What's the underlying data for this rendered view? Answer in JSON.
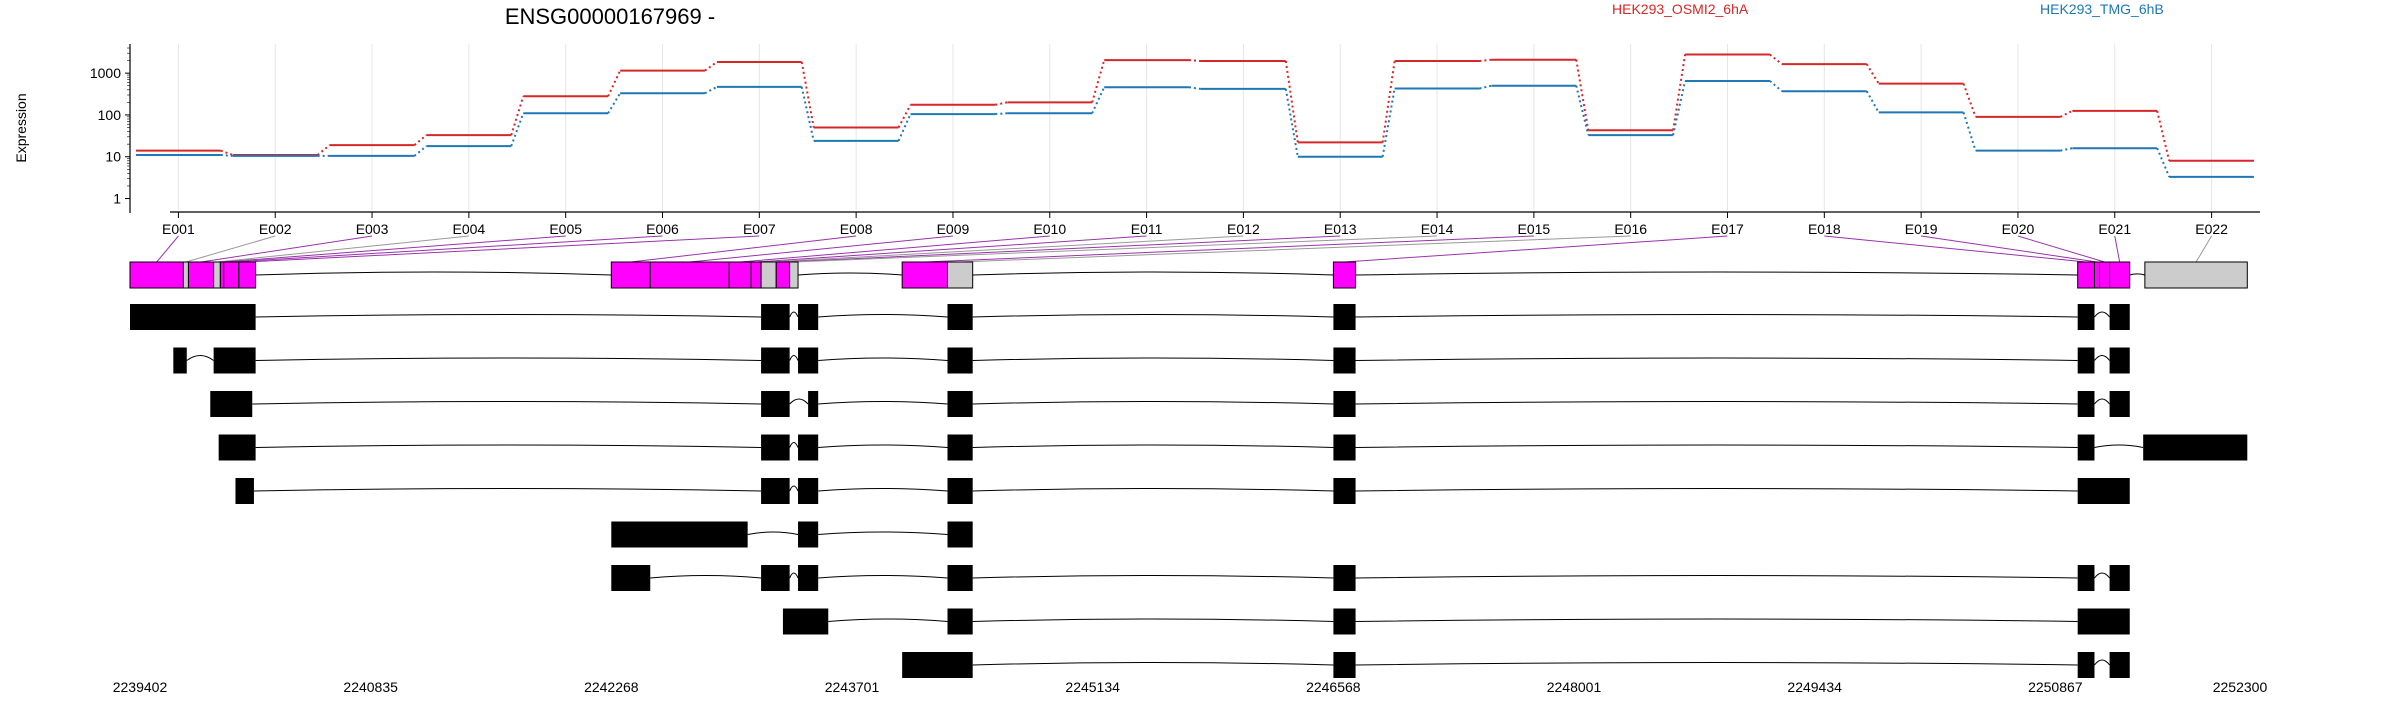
{
  "chart_data": {
    "type": "line",
    "title": "ENSG00000167969 -",
    "ylabel": "Expression",
    "yscale": "log",
    "ylim": [
      0.7,
      4000
    ],
    "y_ticks": [
      1,
      10,
      100,
      1000
    ],
    "y_tick_labels": [
      "1",
      "10",
      "100",
      "1000"
    ],
    "grid": true,
    "categories": [
      "E001",
      "E002",
      "E003",
      "E004",
      "E005",
      "E006",
      "E007",
      "E008",
      "E009",
      "E010",
      "E011",
      "E012",
      "E013",
      "E014",
      "E015",
      "E016",
      "E017",
      "E018",
      "E019",
      "E020",
      "E021",
      "E022"
    ],
    "series": [
      {
        "name": "HEK293_OSMI2_6hA",
        "color": "#d62728",
        "values": [
          14,
          11,
          19,
          33,
          280,
          1150,
          1850,
          50,
          175,
          200,
          2050,
          1950,
          22,
          1950,
          2100,
          43,
          2800,
          1650,
          560,
          90,
          125,
          8
        ]
      },
      {
        "name": "HEK293_TMG_6hB",
        "color": "#1f77b4",
        "values": [
          11,
          10.5,
          10.5,
          18,
          110,
          330,
          470,
          24,
          105,
          110,
          460,
          420,
          10,
          430,
          500,
          33,
          650,
          370,
          115,
          14,
          16,
          3.3
        ]
      }
    ],
    "gene_axis": {
      "start": 2239402,
      "end": 2252300,
      "tick_labels": [
        "2239402",
        "2240835",
        "2242268",
        "2243701",
        "2245134",
        "2246568",
        "2248001",
        "2249434",
        "2250867",
        "2252300"
      ]
    },
    "exon_bins": [
      [
        2239402,
        2239720
      ],
      [
        2239720,
        2239750
      ],
      [
        2239750,
        2239900
      ],
      [
        2239900,
        2239940
      ],
      [
        2239940,
        2239960
      ],
      [
        2239960,
        2240050
      ],
      [
        2240050,
        2240150
      ],
      [
        2242268,
        2242500
      ],
      [
        2242500,
        2242970
      ],
      [
        2242970,
        2243100
      ],
      [
        2243100,
        2243160
      ],
      [
        2243160,
        2243250
      ],
      [
        2243250,
        2243330
      ],
      [
        2243330,
        2243380
      ],
      [
        2244000,
        2244270
      ],
      [
        2244270,
        2244420
      ],
      [
        2246568,
        2246700
      ],
      [
        2251000,
        2251100
      ],
      [
        2251100,
        2251130
      ],
      [
        2251130,
        2251190
      ],
      [
        2251190,
        2251310
      ],
      [
        2251400,
        2252010
      ]
    ],
    "exon_bin_types": [
      "expressed",
      "unexpressed",
      "expressed",
      "unexpressed",
      "expressed",
      "expressed",
      "expressed",
      "expressed",
      "expressed",
      "expressed",
      "expressed",
      "unexpressed",
      "expressed",
      "unexpressed",
      "expressed",
      "unexpressed",
      "expressed",
      "expressed",
      "expressed",
      "expressed",
      "expressed",
      "unexpressed"
    ],
    "bin_colors": {
      "expressed": "#ff00ff",
      "unexpressed": "#cccccc"
    },
    "transcripts": [
      {
        "exons": [
          [
            2239402,
            2240150
          ],
          [
            2243160,
            2243330
          ],
          [
            2243380,
            2243500
          ],
          [
            2244270,
            2244420
          ],
          [
            2246568,
            2246700
          ],
          [
            2251000,
            2251100
          ],
          [
            2251190,
            2251310
          ]
        ]
      },
      {
        "exons": [
          [
            2239660,
            2239740
          ],
          [
            2239900,
            2240150
          ],
          [
            2243160,
            2243330
          ],
          [
            2243380,
            2243500
          ],
          [
            2244270,
            2244420
          ],
          [
            2246568,
            2246700
          ],
          [
            2251000,
            2251100
          ],
          [
            2251190,
            2251310
          ]
        ]
      },
      {
        "exons": [
          [
            2239880,
            2240130
          ],
          [
            2243160,
            2243330
          ],
          [
            2243440,
            2243500
          ],
          [
            2244270,
            2244420
          ],
          [
            2246568,
            2246700
          ],
          [
            2251000,
            2251100
          ],
          [
            2251190,
            2251310
          ]
        ]
      },
      {
        "exons": [
          [
            2239930,
            2240150
          ],
          [
            2243160,
            2243330
          ],
          [
            2243380,
            2243500
          ],
          [
            2244270,
            2244420
          ],
          [
            2246568,
            2246700
          ],
          [
            2251000,
            2251100
          ],
          [
            2251390,
            2252010
          ]
        ]
      },
      {
        "exons": [
          [
            2240030,
            2240140
          ],
          [
            2243160,
            2243330
          ],
          [
            2243380,
            2243500
          ],
          [
            2244270,
            2244420
          ],
          [
            2246568,
            2246700
          ],
          [
            2251000,
            2251310
          ]
        ]
      },
      {
        "exons": [
          [
            2242268,
            2243080
          ],
          [
            2243380,
            2243500
          ],
          [
            2244270,
            2244420
          ]
        ]
      },
      {
        "exons": [
          [
            2242268,
            2242500
          ],
          [
            2243160,
            2243330
          ],
          [
            2243380,
            2243500
          ],
          [
            2244270,
            2244420
          ],
          [
            2246568,
            2246700
          ],
          [
            2251000,
            2251100
          ],
          [
            2251190,
            2251310
          ]
        ]
      },
      {
        "exons": [
          [
            2243290,
            2243560
          ],
          [
            2244270,
            2244420
          ],
          [
            2246568,
            2246700
          ],
          [
            2251000,
            2251310
          ]
        ]
      },
      {
        "exons": [
          [
            2244000,
            2244420
          ],
          [
            2246568,
            2246700
          ],
          [
            2251000,
            2251100
          ],
          [
            2251190,
            2251310
          ]
        ]
      }
    ]
  }
}
